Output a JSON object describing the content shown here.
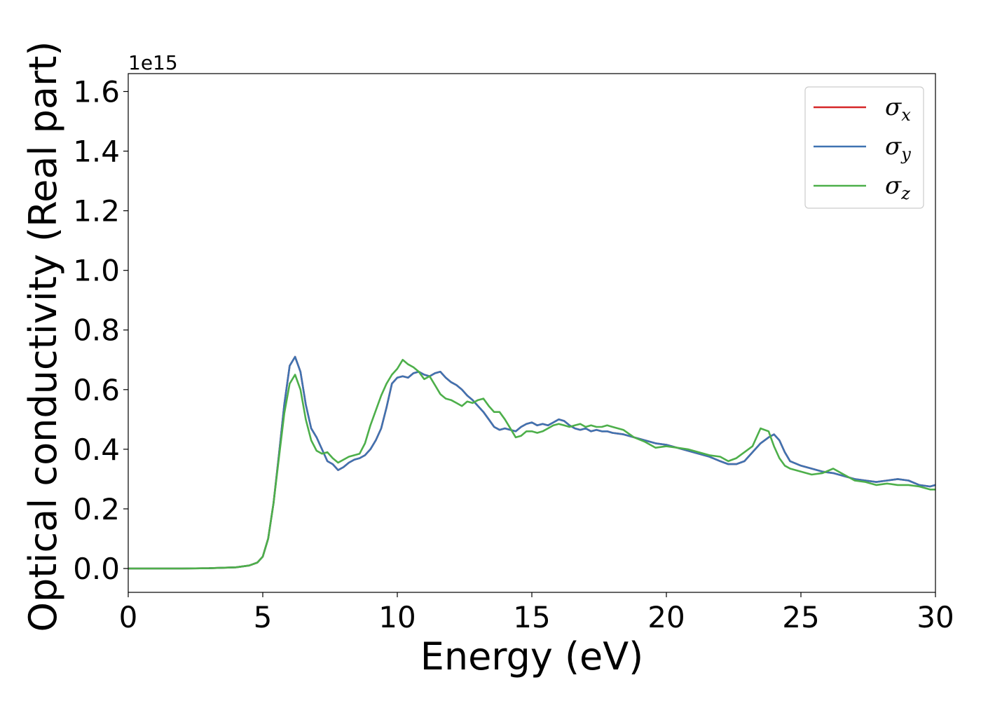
{
  "chart_data": {
    "type": "line",
    "title": "",
    "xlabel": "Energy (eV)",
    "ylabel": "Optical conductivity (Real part)",
    "y_offset_label": "1e15",
    "xlim": [
      0,
      30
    ],
    "ylim": [
      -0.08,
      1.66
    ],
    "xticks": [
      0,
      5,
      10,
      15,
      20,
      25,
      30
    ],
    "xtick_labels": [
      "0",
      "5",
      "10",
      "15",
      "20",
      "25",
      "30"
    ],
    "yticks": [
      0.0,
      0.2,
      0.4,
      0.6,
      0.8,
      1.0,
      1.2,
      1.4,
      1.6
    ],
    "ytick_labels": [
      "0.0",
      "0.2",
      "0.4",
      "0.6",
      "0.8",
      "1.0",
      "1.2",
      "1.4",
      "1.6"
    ],
    "grid": false,
    "legend_position": "top-right",
    "series": [
      {
        "name": "σx",
        "symbol": "σ",
        "subscript": "x",
        "color": "#d62728",
        "x": [
          0,
          1,
          2,
          3,
          4,
          4.5,
          4.8,
          5.0,
          5.2,
          5.4,
          5.6,
          5.8,
          6.0,
          6.2,
          6.4,
          6.6,
          6.8,
          7.0,
          7.2,
          7.4,
          7.6,
          7.8,
          8.0,
          8.2,
          8.4,
          8.6,
          8.8,
          9.0,
          9.2,
          9.4,
          9.6,
          9.8,
          10.0,
          10.2,
          10.4,
          10.6,
          10.8,
          11.0,
          11.2,
          11.4,
          11.6,
          11.8,
          12.0,
          12.2,
          12.4,
          12.6,
          12.8,
          13.0,
          13.2,
          13.4,
          13.6,
          13.8,
          14.0,
          14.2,
          14.4,
          14.6,
          14.8,
          15.0,
          15.2,
          15.4,
          15.6,
          15.8,
          16.0,
          16.2,
          16.4,
          16.6,
          16.8,
          17.0,
          17.2,
          17.4,
          17.6,
          17.8,
          18.0,
          18.4,
          18.8,
          19.2,
          19.6,
          20.0,
          20.4,
          20.8,
          21.2,
          21.6,
          22.0,
          22.3,
          22.6,
          22.9,
          23.2,
          23.5,
          23.8,
          24.0,
          24.2,
          24.4,
          24.6,
          25.0,
          25.4,
          25.8,
          26.2,
          26.6,
          27.0,
          27.4,
          27.8,
          28.2,
          28.6,
          29.0,
          29.4,
          29.8,
          30.0
        ],
        "values": [
          0.0,
          0.0,
          0.0,
          0.001,
          0.004,
          0.01,
          0.02,
          0.04,
          0.1,
          0.22,
          0.38,
          0.55,
          0.68,
          0.71,
          0.66,
          0.55,
          0.47,
          0.44,
          0.4,
          0.36,
          0.35,
          0.33,
          0.34,
          0.355,
          0.365,
          0.37,
          0.38,
          0.4,
          0.43,
          0.47,
          0.54,
          0.62,
          0.64,
          0.645,
          0.64,
          0.655,
          0.66,
          0.65,
          0.645,
          0.655,
          0.66,
          0.64,
          0.625,
          0.615,
          0.6,
          0.58,
          0.565,
          0.545,
          0.525,
          0.5,
          0.475,
          0.465,
          0.47,
          0.465,
          0.46,
          0.475,
          0.485,
          0.49,
          0.48,
          0.485,
          0.48,
          0.49,
          0.5,
          0.495,
          0.48,
          0.47,
          0.465,
          0.47,
          0.46,
          0.465,
          0.46,
          0.46,
          0.455,
          0.45,
          0.44,
          0.43,
          0.42,
          0.415,
          0.405,
          0.395,
          0.385,
          0.375,
          0.36,
          0.35,
          0.35,
          0.36,
          0.39,
          0.42,
          0.44,
          0.45,
          0.43,
          0.39,
          0.36,
          0.345,
          0.335,
          0.325,
          0.32,
          0.31,
          0.3,
          0.295,
          0.29,
          0.295,
          0.3,
          0.295,
          0.28,
          0.275,
          0.28
        ]
      },
      {
        "name": "σy",
        "symbol": "σ",
        "subscript": "y",
        "color": "#3f73b1",
        "x": [
          0,
          1,
          2,
          3,
          4,
          4.5,
          4.8,
          5.0,
          5.2,
          5.4,
          5.6,
          5.8,
          6.0,
          6.2,
          6.4,
          6.6,
          6.8,
          7.0,
          7.2,
          7.4,
          7.6,
          7.8,
          8.0,
          8.2,
          8.4,
          8.6,
          8.8,
          9.0,
          9.2,
          9.4,
          9.6,
          9.8,
          10.0,
          10.2,
          10.4,
          10.6,
          10.8,
          11.0,
          11.2,
          11.4,
          11.6,
          11.8,
          12.0,
          12.2,
          12.4,
          12.6,
          12.8,
          13.0,
          13.2,
          13.4,
          13.6,
          13.8,
          14.0,
          14.2,
          14.4,
          14.6,
          14.8,
          15.0,
          15.2,
          15.4,
          15.6,
          15.8,
          16.0,
          16.2,
          16.4,
          16.6,
          16.8,
          17.0,
          17.2,
          17.4,
          17.6,
          17.8,
          18.0,
          18.4,
          18.8,
          19.2,
          19.6,
          20.0,
          20.4,
          20.8,
          21.2,
          21.6,
          22.0,
          22.3,
          22.6,
          22.9,
          23.2,
          23.5,
          23.8,
          24.0,
          24.2,
          24.4,
          24.6,
          25.0,
          25.4,
          25.8,
          26.2,
          26.6,
          27.0,
          27.4,
          27.8,
          28.2,
          28.6,
          29.0,
          29.4,
          29.8,
          30.0
        ],
        "values": [
          0.0,
          0.0,
          0.0,
          0.001,
          0.004,
          0.01,
          0.02,
          0.04,
          0.1,
          0.22,
          0.38,
          0.55,
          0.68,
          0.71,
          0.66,
          0.55,
          0.47,
          0.44,
          0.4,
          0.36,
          0.35,
          0.33,
          0.34,
          0.355,
          0.365,
          0.37,
          0.38,
          0.4,
          0.43,
          0.47,
          0.54,
          0.62,
          0.64,
          0.645,
          0.64,
          0.655,
          0.66,
          0.65,
          0.645,
          0.655,
          0.66,
          0.64,
          0.625,
          0.615,
          0.6,
          0.58,
          0.565,
          0.545,
          0.525,
          0.5,
          0.475,
          0.465,
          0.47,
          0.465,
          0.46,
          0.475,
          0.485,
          0.49,
          0.48,
          0.485,
          0.48,
          0.49,
          0.5,
          0.495,
          0.48,
          0.47,
          0.465,
          0.47,
          0.46,
          0.465,
          0.46,
          0.46,
          0.455,
          0.45,
          0.44,
          0.43,
          0.42,
          0.415,
          0.405,
          0.395,
          0.385,
          0.375,
          0.36,
          0.35,
          0.35,
          0.36,
          0.39,
          0.42,
          0.44,
          0.45,
          0.43,
          0.39,
          0.36,
          0.345,
          0.335,
          0.325,
          0.32,
          0.31,
          0.3,
          0.295,
          0.29,
          0.295,
          0.3,
          0.295,
          0.28,
          0.275,
          0.28
        ]
      },
      {
        "name": "σz",
        "symbol": "σ",
        "subscript": "z",
        "color": "#4daf4a",
        "x": [
          0,
          1,
          2,
          3,
          4,
          4.5,
          4.8,
          5.0,
          5.2,
          5.4,
          5.6,
          5.8,
          6.0,
          6.2,
          6.4,
          6.6,
          6.8,
          7.0,
          7.2,
          7.4,
          7.6,
          7.8,
          8.0,
          8.2,
          8.4,
          8.6,
          8.8,
          9.0,
          9.2,
          9.4,
          9.6,
          9.8,
          10.0,
          10.2,
          10.4,
          10.6,
          10.8,
          11.0,
          11.2,
          11.4,
          11.6,
          11.8,
          12.0,
          12.2,
          12.4,
          12.6,
          12.8,
          13.0,
          13.2,
          13.4,
          13.6,
          13.8,
          14.0,
          14.2,
          14.4,
          14.6,
          14.8,
          15.0,
          15.2,
          15.4,
          15.6,
          15.8,
          16.0,
          16.2,
          16.4,
          16.6,
          16.8,
          17.0,
          17.2,
          17.4,
          17.6,
          17.8,
          18.0,
          18.4,
          18.8,
          19.2,
          19.6,
          20.0,
          20.4,
          20.8,
          21.2,
          21.6,
          22.0,
          22.3,
          22.6,
          22.9,
          23.2,
          23.5,
          23.8,
          24.0,
          24.2,
          24.4,
          24.6,
          25.0,
          25.4,
          25.8,
          26.2,
          26.6,
          27.0,
          27.4,
          27.8,
          28.2,
          28.6,
          29.0,
          29.4,
          29.8,
          30.0
        ],
        "values": [
          0.0,
          0.0,
          0.0,
          0.001,
          0.004,
          0.01,
          0.02,
          0.04,
          0.1,
          0.22,
          0.37,
          0.52,
          0.62,
          0.65,
          0.6,
          0.5,
          0.43,
          0.395,
          0.385,
          0.39,
          0.37,
          0.355,
          0.365,
          0.375,
          0.38,
          0.385,
          0.42,
          0.48,
          0.53,
          0.58,
          0.62,
          0.65,
          0.67,
          0.7,
          0.685,
          0.675,
          0.66,
          0.635,
          0.645,
          0.615,
          0.585,
          0.57,
          0.565,
          0.555,
          0.545,
          0.56,
          0.555,
          0.565,
          0.57,
          0.545,
          0.525,
          0.525,
          0.5,
          0.47,
          0.44,
          0.445,
          0.46,
          0.46,
          0.455,
          0.46,
          0.47,
          0.48,
          0.485,
          0.48,
          0.475,
          0.48,
          0.485,
          0.475,
          0.48,
          0.475,
          0.475,
          0.48,
          0.475,
          0.465,
          0.44,
          0.425,
          0.405,
          0.41,
          0.405,
          0.4,
          0.39,
          0.38,
          0.375,
          0.36,
          0.37,
          0.39,
          0.41,
          0.47,
          0.46,
          0.41,
          0.37,
          0.345,
          0.335,
          0.325,
          0.315,
          0.32,
          0.335,
          0.315,
          0.295,
          0.29,
          0.28,
          0.285,
          0.28,
          0.28,
          0.275,
          0.265,
          0.265
        ]
      }
    ]
  }
}
